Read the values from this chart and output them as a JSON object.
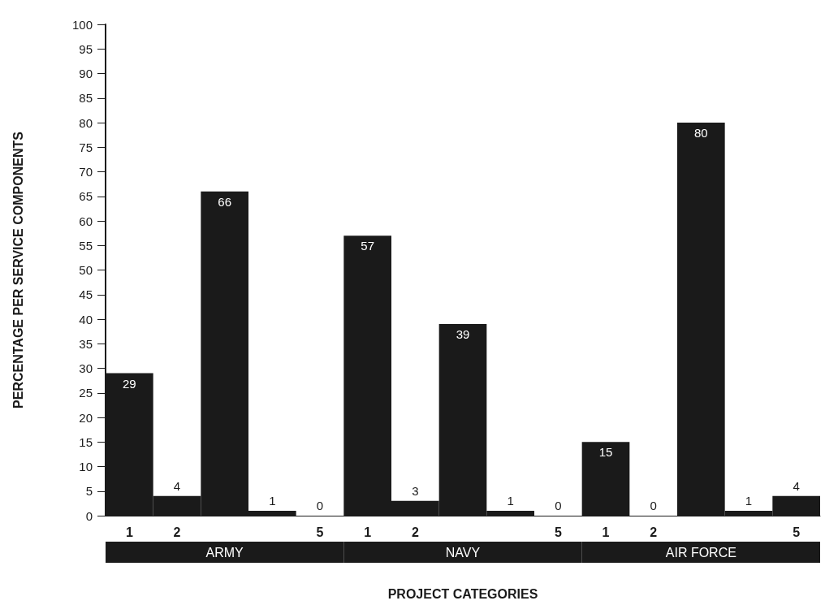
{
  "chart_data": {
    "type": "bar",
    "xlabel": "PROJECT CATEGORIES",
    "ylabel": "PERCENTAGE PER SERVICE COMPONENTS",
    "categories": [
      "1",
      "2",
      null,
      null,
      "5",
      "1",
      "2",
      null,
      null,
      "5",
      "1",
      "2",
      null,
      null,
      "5"
    ],
    "values": [
      29,
      4,
      66,
      1,
      0,
      57,
      3,
      39,
      1,
      0,
      15,
      0,
      80,
      1,
      4
    ],
    "color": "#1a1a1a",
    "ylim": [
      0,
      100
    ],
    "yticks": [
      0,
      5,
      10,
      15,
      20,
      25,
      30,
      35,
      40,
      45,
      50,
      55,
      60,
      65,
      70,
      75,
      80,
      85,
      90,
      95,
      100
    ],
    "grid": false,
    "data_labels": true,
    "annotations": [
      "ARMY",
      "NAVY",
      "AIR FORCE"
    ]
  }
}
